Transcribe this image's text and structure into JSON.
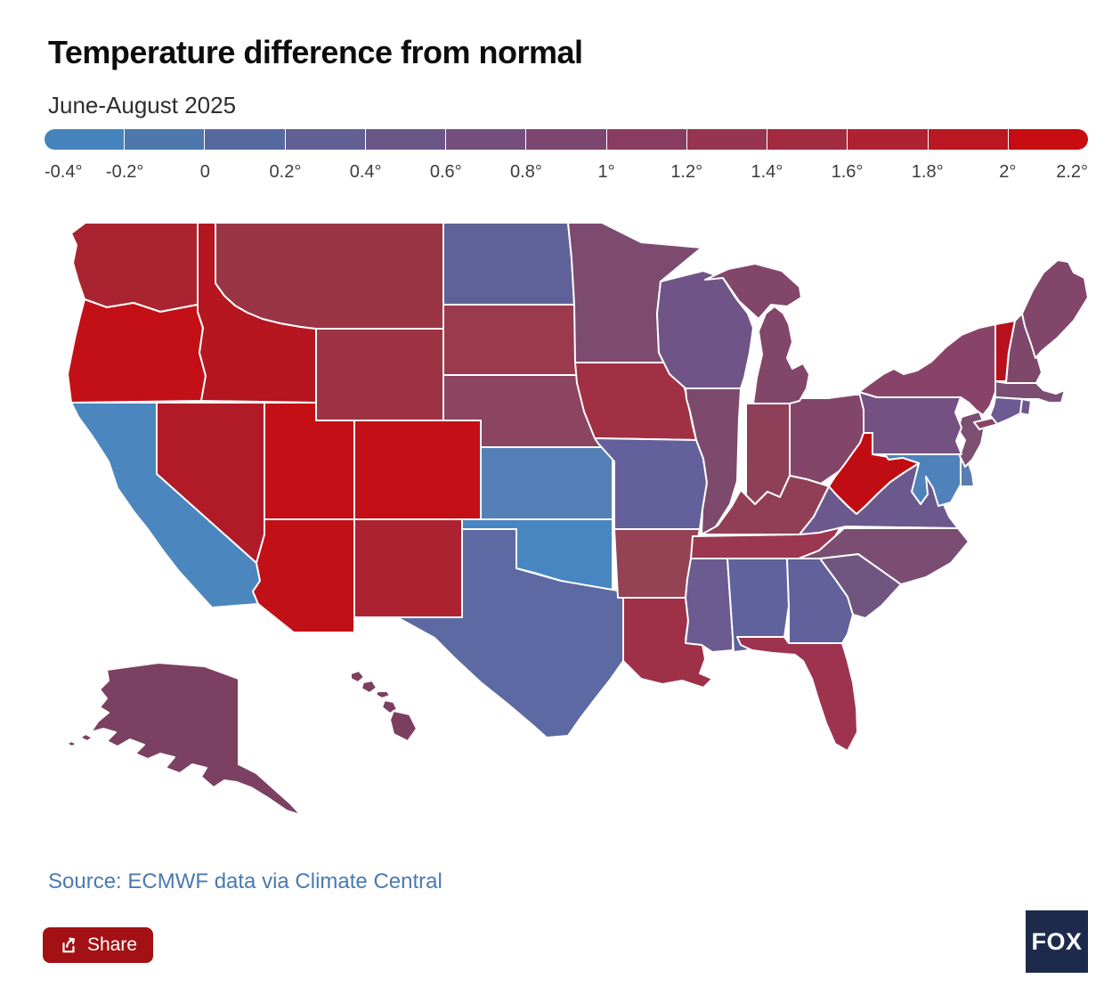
{
  "header": {
    "title": "Temperature difference from normal",
    "subtitle": "June-August 2025"
  },
  "legend": {
    "labels": [
      "-0.4°",
      "-0.2°",
      "0",
      "0.2°",
      "0.4°",
      "0.6°",
      "0.8°",
      "1°",
      "1.2°",
      "1.4°",
      "1.6°",
      "1.8°",
      "2°",
      "2.2°"
    ],
    "segment_colors": [
      "#4583bd",
      "#4d77ad",
      "#56699e",
      "#615f93",
      "#6a5787",
      "#744f7d",
      "#7d4670",
      "#8a3c60",
      "#963452",
      "#a22b41",
      "#ae2233",
      "#b91822",
      "#c70d11"
    ]
  },
  "chart_data": {
    "type": "heatmap",
    "subtype": "us-state-choropleth",
    "title": "Temperature difference from normal",
    "subtitle": "June-August 2025",
    "unit": "degrees",
    "scale": {
      "min": -0.4,
      "max": 2.2,
      "step": 0.2,
      "legend_position": "top"
    },
    "states": [
      {
        "code": "WA",
        "name": "Washington",
        "value": 1.7,
        "color": "#a92430"
      },
      {
        "code": "OR",
        "name": "Oregon",
        "value": 2.1,
        "color": "#c31017"
      },
      {
        "code": "ID",
        "name": "Idaho",
        "value": 1.9,
        "color": "#b5161f"
      },
      {
        "code": "MT",
        "name": "Montana",
        "value": 1.3,
        "color": "#9a3545"
      },
      {
        "code": "WY",
        "name": "Wyoming",
        "value": 1.35,
        "color": "#9d3343"
      },
      {
        "code": "NV",
        "name": "Nevada",
        "value": 1.8,
        "color": "#b01b27"
      },
      {
        "code": "UT",
        "name": "Utah",
        "value": 2.1,
        "color": "#c30f15"
      },
      {
        "code": "CO",
        "name": "Colorado",
        "value": 2.1,
        "color": "#c30f15"
      },
      {
        "code": "AZ",
        "name": "Arizona",
        "value": 2.05,
        "color": "#c11016"
      },
      {
        "code": "NM",
        "name": "New Mexico",
        "value": 1.75,
        "color": "#ad2231"
      },
      {
        "code": "CA",
        "name": "California",
        "value": -0.3,
        "color": "#4b86bf"
      },
      {
        "code": "ND",
        "name": "North Dakota",
        "value": 0.3,
        "color": "#5f6298"
      },
      {
        "code": "SD",
        "name": "South Dakota",
        "value": 1.3,
        "color": "#9a3a4c"
      },
      {
        "code": "NE",
        "name": "Nebraska",
        "value": 1.0,
        "color": "#8b4560"
      },
      {
        "code": "KS",
        "name": "Kansas",
        "value": -0.1,
        "color": "#5480b7"
      },
      {
        "code": "OK",
        "name": "Oklahoma",
        "value": -0.3,
        "color": "#4786c1"
      },
      {
        "code": "TX",
        "name": "Texas",
        "value": 0.3,
        "color": "#5c69a3"
      },
      {
        "code": "MN",
        "name": "Minnesota",
        "value": 0.8,
        "color": "#7d4a70"
      },
      {
        "code": "IA",
        "name": "Iowa",
        "value": 1.45,
        "color": "#a23044"
      },
      {
        "code": "MO",
        "name": "Missouri",
        "value": 0.4,
        "color": "#64609b"
      },
      {
        "code": "WI",
        "name": "Wisconsin",
        "value": 0.6,
        "color": "#705487"
      },
      {
        "code": "IL",
        "name": "Illinois",
        "value": 0.8,
        "color": "#7d4a6e"
      },
      {
        "code": "IN",
        "name": "Indiana",
        "value": 1.1,
        "color": "#8e4058"
      },
      {
        "code": "OH",
        "name": "Ohio",
        "value": 0.9,
        "color": "#834669"
      },
      {
        "code": "MI",
        "name": "Michigan",
        "value": 0.9,
        "color": "#82466a"
      },
      {
        "code": "KY",
        "name": "Kentucky",
        "value": 1.15,
        "color": "#913f56"
      },
      {
        "code": "TN",
        "name": "Tennessee",
        "value": 1.3,
        "color": "#9b3750"
      },
      {
        "code": "AR",
        "name": "Arkansas",
        "value": 1.2,
        "color": "#954254"
      },
      {
        "code": "LA",
        "name": "Louisiana",
        "value": 1.45,
        "color": "#9e3048"
      },
      {
        "code": "MS",
        "name": "Mississippi",
        "value": 0.5,
        "color": "#6b5b90"
      },
      {
        "code": "AL",
        "name": "Alabama",
        "value": 0.3,
        "color": "#5f629c"
      },
      {
        "code": "GA",
        "name": "Georgia",
        "value": 0.35,
        "color": "#62619b"
      },
      {
        "code": "FL",
        "name": "Florida",
        "value": 1.35,
        "color": "#9e3350"
      },
      {
        "code": "SC",
        "name": "South Carolina",
        "value": 0.65,
        "color": "#6f5580"
      },
      {
        "code": "NC",
        "name": "North Carolina",
        "value": 0.8,
        "color": "#7b4d73"
      },
      {
        "code": "VA",
        "name": "Virginia",
        "value": 0.5,
        "color": "#6b598e"
      },
      {
        "code": "WV",
        "name": "West Virginia",
        "value": 2.05,
        "color": "#c00d13"
      },
      {
        "code": "MD",
        "name": "Maryland",
        "value": -0.2,
        "color": "#4f82ba"
      },
      {
        "code": "DE",
        "name": "Delaware",
        "value": -0.1,
        "color": "#597dae"
      },
      {
        "code": "NJ",
        "name": "New Jersey",
        "value": 0.8,
        "color": "#7b4e72"
      },
      {
        "code": "PA",
        "name": "Pennsylvania",
        "value": 0.7,
        "color": "#745180"
      },
      {
        "code": "NY",
        "name": "New York",
        "value": 1.0,
        "color": "#8a4368"
      },
      {
        "code": "VT",
        "name": "Vermont",
        "value": 1.9,
        "color": "#b8111d"
      },
      {
        "code": "NH",
        "name": "New Hampshire",
        "value": 0.9,
        "color": "#7f486b"
      },
      {
        "code": "ME",
        "name": "Maine",
        "value": 0.95,
        "color": "#82466a"
      },
      {
        "code": "MA",
        "name": "Massachusetts",
        "value": 0.8,
        "color": "#7b4e74"
      },
      {
        "code": "CT",
        "name": "Connecticut",
        "value": 0.5,
        "color": "#6b5b92"
      },
      {
        "code": "RI",
        "name": "Rhode Island",
        "value": 0.5,
        "color": "#6e5890"
      },
      {
        "code": "AK",
        "name": "Alaska",
        "value": 1.0,
        "color": "#7b4062"
      },
      {
        "code": "HI",
        "name": "Hawaii",
        "value": 1.0,
        "color": "#7c3f60"
      }
    ]
  },
  "footer": {
    "source": "Source: ECMWF data via Climate Central",
    "share_label": "Share",
    "logo_text": "FOX"
  }
}
